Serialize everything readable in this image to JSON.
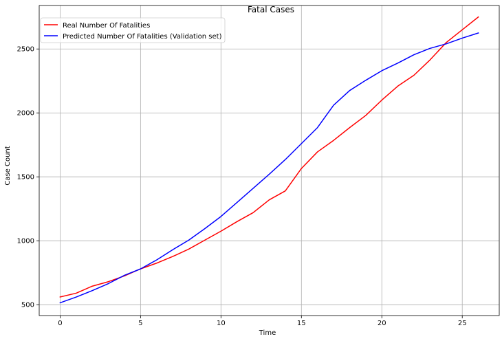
{
  "chart_data": {
    "type": "line",
    "title": "Fatal Cases",
    "xlabel": "Time",
    "ylabel": "Case Count",
    "xlim": [
      -1.3,
      27.3
    ],
    "ylim": [
      415,
      2840
    ],
    "xticks": [
      0,
      5,
      10,
      15,
      20,
      25
    ],
    "yticks": [
      500,
      1000,
      1500,
      2000,
      2500
    ],
    "grid": true,
    "legend_position": "upper-left",
    "x": [
      0,
      1,
      2,
      3,
      4,
      5,
      6,
      7,
      8,
      9,
      10,
      11,
      12,
      13,
      14,
      15,
      16,
      17,
      18,
      19,
      20,
      21,
      22,
      23,
      24,
      25,
      26
    ],
    "series": [
      {
        "name": "Real Number Of Fatalities",
        "color": "#ff0000",
        "values": [
          560,
          590,
          645,
          680,
          725,
          780,
          825,
          877,
          935,
          1005,
          1075,
          1150,
          1220,
          1320,
          1390,
          1565,
          1695,
          1785,
          1885,
          1980,
          2100,
          2210,
          2295,
          2415,
          2550,
          2650,
          2750
        ]
      },
      {
        "name": "Predicted Number Of Fatalities (Validation set)",
        "color": "#0000ff",
        "values": [
          515,
          560,
          610,
          665,
          730,
          780,
          850,
          930,
          1005,
          1095,
          1190,
          1300,
          1410,
          1520,
          1635,
          1760,
          1885,
          2060,
          2175,
          2255,
          2330,
          2390,
          2455,
          2505,
          2540,
          2585,
          2625
        ]
      }
    ]
  }
}
